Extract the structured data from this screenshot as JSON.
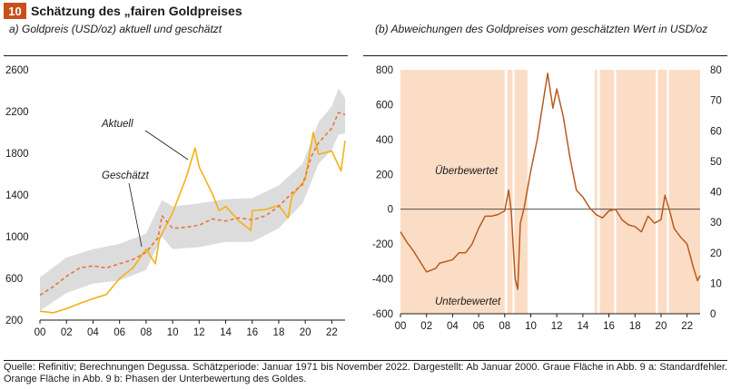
{
  "figure": {
    "number": "10",
    "title": "Schätzung des „fairen Goldpreises",
    "source_note": "Quelle: Refinitiv; Berechnungen Degussa. Schätzperiode: Januar 1971 bis November 2022. Dargestellt: Ab Januar 2000. Graue Fläche in Abb. 9 a: Standardfehler. Orange Fläche in Abb. 9 b: Phasen der Unterbewertung des Goldes."
  },
  "colors": {
    "accent": "#c8501c",
    "actual": "#f5b014",
    "estimated": "#e8733a",
    "band": "#dcdcdc",
    "deviation": "#b85a1e",
    "shade": "#fbddc6",
    "over": "#d0602a",
    "under": "#2f9e3c"
  },
  "chart_data": [
    {
      "id": "a",
      "type": "line",
      "title": "a) Goldpreis (USD/oz) aktuell und geschätzt",
      "xlabel": "",
      "ylabel": "",
      "x_ticks": [
        "00",
        "02",
        "04",
        "06",
        "08",
        "10",
        "12",
        "14",
        "16",
        "18",
        "20",
        "22"
      ],
      "y_ticks": [
        "200",
        "600",
        "1000",
        "1400",
        "1800",
        "2200",
        "2600"
      ],
      "xlim": [
        2000,
        2023
      ],
      "ylim": [
        200,
        2600
      ],
      "annotations": [
        {
          "text": "Aktuell"
        },
        {
          "text": "Geschätzt"
        }
      ],
      "series": [
        {
          "name": "Aktuell",
          "x": [
            2000,
            2001,
            2002,
            2003,
            2004,
            2005,
            2006,
            2007,
            2008,
            2008.7,
            2009,
            2010,
            2011,
            2011.7,
            2012,
            2013,
            2013.5,
            2014,
            2015,
            2015.9,
            2016,
            2017,
            2018,
            2018.7,
            2019,
            2020,
            2020.6,
            2021,
            2022,
            2022.7,
            2023
          ],
          "values": [
            285,
            270,
            310,
            360,
            405,
            445,
            600,
            700,
            880,
            740,
            980,
            1230,
            1560,
            1850,
            1670,
            1410,
            1250,
            1290,
            1150,
            1060,
            1250,
            1260,
            1300,
            1180,
            1390,
            1550,
            2000,
            1790,
            1820,
            1630,
            1920
          ]
        },
        {
          "name": "Geschätzt",
          "x": [
            2000,
            2001,
            2002,
            2003,
            2004,
            2005,
            2006,
            2007,
            2008,
            2008.9,
            2009.2,
            2010,
            2011,
            2012,
            2013,
            2014,
            2015,
            2016,
            2017,
            2018,
            2019,
            2019.8,
            2020.5,
            2021,
            2022,
            2022.5,
            2023
          ],
          "values": [
            440,
            520,
            620,
            700,
            720,
            700,
            740,
            780,
            850,
            990,
            1200,
            1080,
            1090,
            1110,
            1170,
            1150,
            1180,
            1160,
            1200,
            1290,
            1420,
            1500,
            1780,
            1900,
            2040,
            2190,
            2170
          ]
        },
        {
          "name": "Standardfehler oben",
          "x": [
            2000,
            2002,
            2004,
            2006,
            2008,
            2009.2,
            2010,
            2012,
            2014,
            2016,
            2018,
            2019.8,
            2021,
            2022,
            2022.5,
            2023
          ],
          "values": [
            610,
            800,
            880,
            930,
            1030,
            1350,
            1290,
            1320,
            1360,
            1370,
            1490,
            1700,
            2100,
            2250,
            2420,
            2330
          ]
        },
        {
          "name": "Standardfehler unten",
          "x": [
            2000,
            2002,
            2004,
            2006,
            2008,
            2009.2,
            2010,
            2012,
            2014,
            2016,
            2018,
            2019.8,
            2021,
            2022,
            2022.5,
            2023
          ],
          "values": [
            290,
            460,
            550,
            580,
            680,
            1000,
            880,
            900,
            950,
            950,
            1080,
            1320,
            1700,
            1830,
            1980,
            1990
          ]
        }
      ]
    },
    {
      "id": "b",
      "type": "line",
      "title": "(b) Abweichungen des Goldpreises vom geschätzten Wert in USD/oz",
      "xlabel": "",
      "ylabel": "",
      "x_ticks": [
        "00",
        "02",
        "04",
        "06",
        "08",
        "10",
        "12",
        "14",
        "16",
        "18",
        "20",
        "22"
      ],
      "y_left_ticks": [
        "-600",
        "-400",
        "-200",
        "0",
        "200",
        "400",
        "600",
        "800"
      ],
      "y_right_ticks": [
        "0",
        "10",
        "20",
        "30",
        "40",
        "50",
        "60",
        "70",
        "80"
      ],
      "xlim": [
        2000,
        2023
      ],
      "ylim": [
        -600,
        800
      ],
      "y2lim": [
        0,
        80
      ],
      "annotations": [
        {
          "text": "Überbewertet"
        },
        {
          "text": "Unterbewertet"
        }
      ],
      "undervaluation_phases": [
        [
          2000,
          2008
        ],
        [
          2008.2,
          2008.6
        ],
        [
          2008.75,
          2009.75
        ],
        [
          2014.9,
          2015.1
        ],
        [
          2015.3,
          2016.4
        ],
        [
          2016.55,
          2019.6
        ],
        [
          2019.75,
          2020.45
        ],
        [
          2020.6,
          2023
        ]
      ],
      "series": [
        {
          "name": "Abweichung",
          "x": [
            2000,
            2000.5,
            2001,
            2001.5,
            2002,
            2002.7,
            2003,
            2003.5,
            2004,
            2004.5,
            2005,
            2005.5,
            2006,
            2006.5,
            2007,
            2007.5,
            2008,
            2008.3,
            2008.5,
            2008.8,
            2009,
            2009.2,
            2009.5,
            2010,
            2010.5,
            2011,
            2011.3,
            2011.7,
            2012,
            2012.5,
            2013,
            2013.5,
            2014,
            2014.5,
            2015,
            2015.5,
            2016,
            2016.5,
            2017,
            2017.5,
            2018,
            2018.5,
            2019,
            2019.5,
            2020,
            2020.3,
            2020.7,
            2021,
            2021.5,
            2022,
            2022.5,
            2022.8,
            2023
          ],
          "values": [
            -130,
            -190,
            -240,
            -300,
            -360,
            -340,
            -310,
            -300,
            -290,
            -250,
            -250,
            -200,
            -110,
            -40,
            -40,
            -30,
            -10,
            110,
            -10,
            -400,
            -460,
            -80,
            10,
            220,
            400,
            640,
            780,
            580,
            690,
            530,
            300,
            110,
            70,
            10,
            -30,
            -50,
            -10,
            0,
            -60,
            -90,
            -100,
            -130,
            -40,
            -80,
            -60,
            80,
            -20,
            -110,
            -160,
            -200,
            -340,
            -410,
            -380
          ]
        }
      ]
    }
  ]
}
